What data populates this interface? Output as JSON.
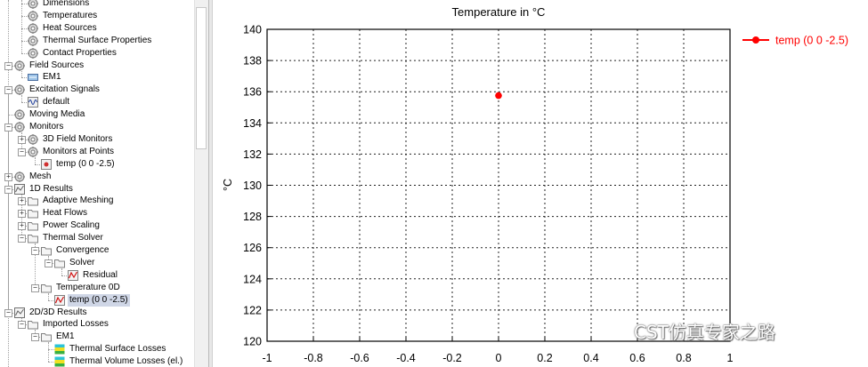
{
  "tree": {
    "items": [
      {
        "label": "Dimensions",
        "depth": 1,
        "icon": "gear",
        "toggle": ""
      },
      {
        "label": "Temperatures",
        "depth": 1,
        "icon": "gear",
        "toggle": ""
      },
      {
        "label": "Heat Sources",
        "depth": 1,
        "icon": "gear",
        "toggle": ""
      },
      {
        "label": "Thermal Surface Properties",
        "depth": 1,
        "icon": "gear",
        "toggle": ""
      },
      {
        "label": "Contact Properties",
        "depth": 1,
        "icon": "gear",
        "toggle": ""
      },
      {
        "label": "Field Sources",
        "depth": 0,
        "icon": "gear",
        "toggle": "-"
      },
      {
        "label": "EM1",
        "depth": 1,
        "icon": "field-source",
        "toggle": ""
      },
      {
        "label": "Excitation Signals",
        "depth": 0,
        "icon": "gear",
        "toggle": "-"
      },
      {
        "label": "default",
        "depth": 1,
        "icon": "signal",
        "toggle": ""
      },
      {
        "label": "Moving Media",
        "depth": 0,
        "icon": "gear",
        "toggle": ""
      },
      {
        "label": "Monitors",
        "depth": 0,
        "icon": "gear",
        "toggle": "-"
      },
      {
        "label": "3D Field Monitors",
        "depth": 1,
        "icon": "gear",
        "toggle": "+"
      },
      {
        "label": "Monitors at Points",
        "depth": 1,
        "icon": "gear",
        "toggle": "-"
      },
      {
        "label": "temp (0 0 -2.5)",
        "depth": 2,
        "icon": "point-monitor",
        "toggle": ""
      },
      {
        "label": "Mesh",
        "depth": 0,
        "icon": "gear",
        "toggle": "+"
      },
      {
        "label": "1D Results",
        "depth": 0,
        "icon": "result-1d",
        "toggle": "-"
      },
      {
        "label": "Adaptive Meshing",
        "depth": 1,
        "icon": "folder",
        "toggle": "+"
      },
      {
        "label": "Heat Flows",
        "depth": 1,
        "icon": "folder",
        "toggle": "+"
      },
      {
        "label": "Power Scaling",
        "depth": 1,
        "icon": "folder",
        "toggle": "+"
      },
      {
        "label": "Thermal Solver",
        "depth": 1,
        "icon": "folder",
        "toggle": "-"
      },
      {
        "label": "Convergence",
        "depth": 2,
        "icon": "folder",
        "toggle": "-"
      },
      {
        "label": "Solver",
        "depth": 3,
        "icon": "folder",
        "toggle": "-"
      },
      {
        "label": "Residual",
        "depth": 4,
        "icon": "curve",
        "toggle": ""
      },
      {
        "label": "Temperature 0D",
        "depth": 2,
        "icon": "folder",
        "toggle": "-"
      },
      {
        "label": "temp (0 0 -2.5)",
        "depth": 3,
        "icon": "curve",
        "toggle": "",
        "selected": true
      },
      {
        "label": "2D/3D Results",
        "depth": 0,
        "icon": "result-2d3d",
        "toggle": "-"
      },
      {
        "label": "Imported Losses",
        "depth": 1,
        "icon": "folder",
        "toggle": "-"
      },
      {
        "label": "EM1",
        "depth": 2,
        "icon": "folder",
        "toggle": "-"
      },
      {
        "label": "Thermal Surface Losses",
        "depth": 3,
        "icon": "surface-map",
        "toggle": ""
      },
      {
        "label": "Thermal Volume Losses (el.)",
        "depth": 3,
        "icon": "surface-map",
        "toggle": ""
      }
    ]
  },
  "chart_data": {
    "type": "scatter",
    "title": "Temperature in °C",
    "ylabel": "°C",
    "xlabel": "",
    "xlim": [
      -1,
      1
    ],
    "ylim": [
      120,
      140
    ],
    "xticks": [
      "-1",
      "-0.8",
      "-0.6",
      "-0.4",
      "-0.2",
      "0",
      "0.2",
      "0.4",
      "0.6",
      "0.8",
      "1"
    ],
    "yticks": [
      "120",
      "122",
      "124",
      "126",
      "128",
      "130",
      "132",
      "134",
      "136",
      "138",
      "140"
    ],
    "grid": true,
    "legend_position": "top-right",
    "series": [
      {
        "name": "temp (0 0 -2.5)",
        "color": "#ff0000",
        "points": [
          {
            "x": 0,
            "y": 135.75
          }
        ]
      }
    ]
  },
  "watermark": {
    "text": "CST仿真专家之路"
  }
}
